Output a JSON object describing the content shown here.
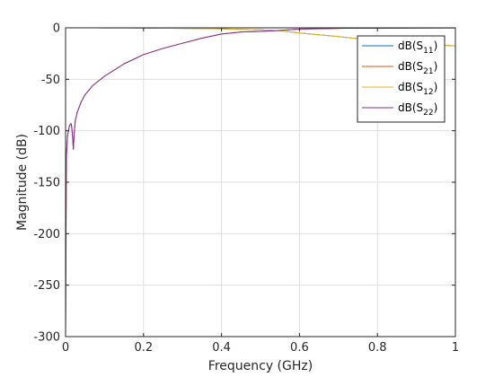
{
  "chart_data": {
    "type": "line",
    "title": "",
    "xlabel": "Frequency (GHz)",
    "ylabel": "Magnitude (dB)",
    "xlim": [
      0,
      1
    ],
    "ylim": [
      -300,
      0
    ],
    "xticks": [
      0,
      0.2,
      0.4,
      0.6,
      0.8,
      1
    ],
    "xtick_labels": [
      "0",
      "0.2",
      "0.4",
      "0.6",
      "0.8",
      "1"
    ],
    "yticks": [
      -300,
      -250,
      -200,
      -150,
      -100,
      -50,
      0
    ],
    "ytick_labels": [
      "-300",
      "-250",
      "-200",
      "-150",
      "-100",
      "-50",
      "0"
    ],
    "grid": true,
    "legend_position": "top-right",
    "series": [
      {
        "name": "dB(S11)",
        "legend_main": "dB(S",
        "legend_sub": "11",
        "legend_end": ")",
        "color": "#0072BD",
        "x": [
          0.0,
          0.002,
          0.005,
          0.01,
          0.02,
          0.04,
          0.06,
          0.08,
          0.1,
          0.15,
          0.2,
          0.3,
          0.4,
          0.5,
          0.55,
          0.6,
          0.7,
          0.8,
          0.9,
          1.0
        ],
        "y": [
          0,
          0,
          0,
          0,
          0,
          0,
          0,
          0,
          -0.1,
          -0.1,
          -0.2,
          -0.5,
          -1.0,
          -2.0,
          -2.8,
          -5.0,
          -8.5,
          -12.5,
          -15.5,
          -17.5
        ]
      },
      {
        "name": "dB(S21)",
        "legend_main": "dB(S",
        "legend_sub": "21",
        "legend_end": ")",
        "color": "#D95319",
        "x": [
          0.0,
          0.002,
          0.005,
          0.01,
          0.014,
          0.016,
          0.018,
          0.02,
          0.022,
          0.025,
          0.03,
          0.04,
          0.05,
          0.07,
          0.1,
          0.15,
          0.2,
          0.25,
          0.3,
          0.35,
          0.4,
          0.45,
          0.5,
          0.55,
          0.6,
          0.7,
          0.8,
          0.9,
          1.0
        ],
        "y": [
          -300,
          -125,
          -105,
          -95,
          -93,
          -97,
          -106,
          -118,
          -103,
          -90,
          -82,
          -72,
          -65,
          -56,
          -47,
          -35,
          -26,
          -20,
          -15,
          -10,
          -6,
          -4,
          -3.5,
          -2.5,
          -1.2,
          -0.5,
          -0.3,
          -0.2,
          -0.1
        ]
      },
      {
        "name": "dB(S12)",
        "legend_main": "dB(S",
        "legend_sub": "12",
        "legend_end": ")",
        "color": "#EDB120",
        "x": [
          0.0,
          0.002,
          0.005,
          0.01,
          0.02,
          0.04,
          0.06,
          0.08,
          0.1,
          0.15,
          0.2,
          0.3,
          0.4,
          0.5,
          0.55,
          0.6,
          0.7,
          0.8,
          0.9,
          1.0
        ],
        "y": [
          0,
          0,
          0,
          0,
          0,
          0,
          0,
          0,
          -0.1,
          -0.1,
          -0.2,
          -0.5,
          -1.0,
          -2.0,
          -2.8,
          -5.0,
          -8.5,
          -12.5,
          -15.5,
          -17.5
        ]
      },
      {
        "name": "dB(S22)",
        "legend_main": "dB(S",
        "legend_sub": "22",
        "legend_end": ")",
        "color": "#7E2F8E",
        "x": [
          0.0,
          0.002,
          0.005,
          0.01,
          0.014,
          0.016,
          0.018,
          0.02,
          0.022,
          0.025,
          0.03,
          0.04,
          0.05,
          0.07,
          0.1,
          0.15,
          0.2,
          0.25,
          0.3,
          0.35,
          0.4,
          0.45,
          0.5,
          0.55,
          0.6,
          0.7,
          0.8,
          0.9,
          1.0
        ],
        "y": [
          -300,
          -125,
          -105,
          -95,
          -93,
          -97,
          -106,
          -118,
          -103,
          -90,
          -82,
          -72,
          -65,
          -56,
          -47,
          -35,
          -26,
          -20,
          -15,
          -10,
          -6,
          -4,
          -3.5,
          -2.5,
          -1.2,
          -0.5,
          -0.3,
          -0.2,
          -0.1
        ]
      }
    ]
  }
}
